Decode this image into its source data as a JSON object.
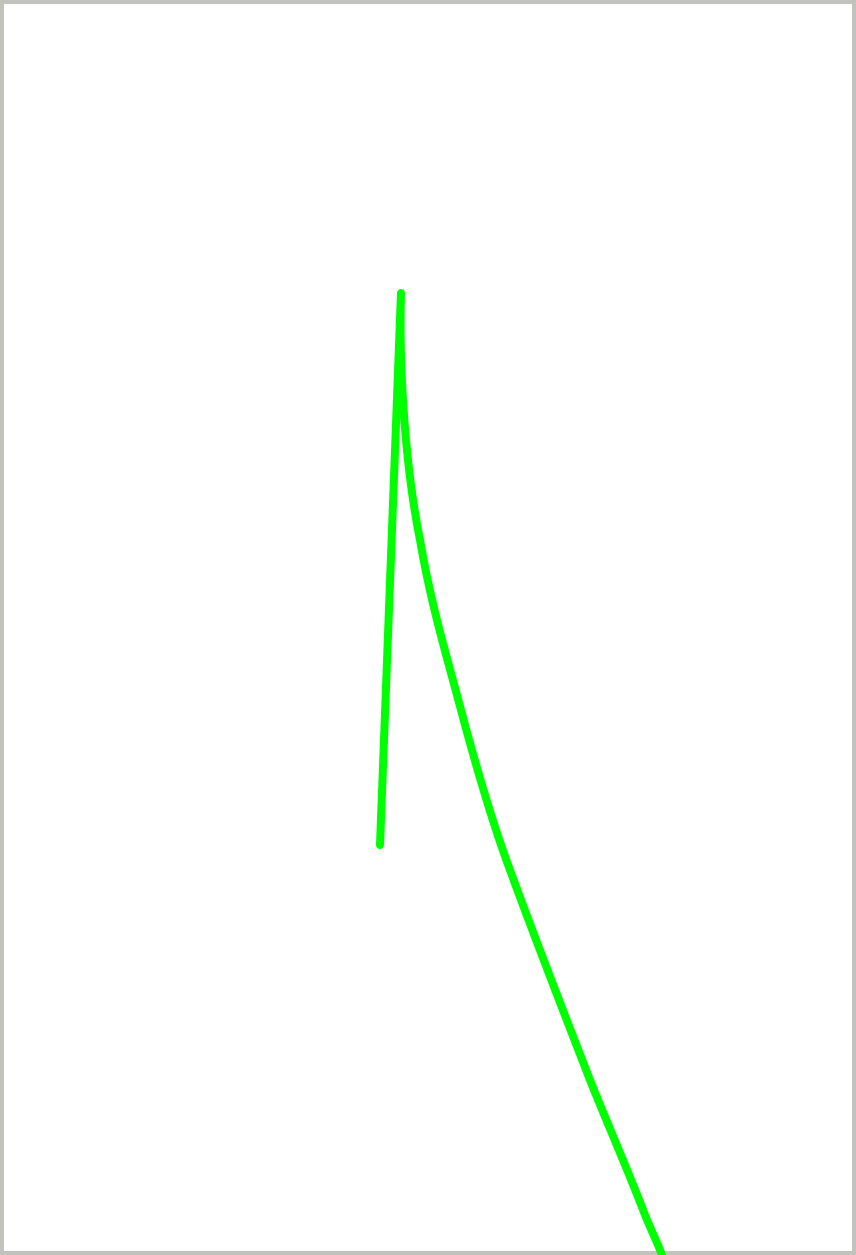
{
  "canvas": {
    "background_color": "#ffffff",
    "border_color": "#c3c3bd",
    "stroke_color": "#00ff00"
  }
}
